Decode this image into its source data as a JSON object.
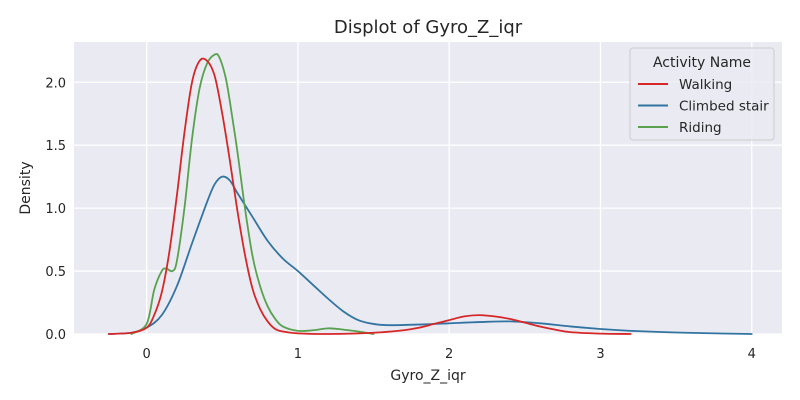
{
  "chart_data": {
    "type": "line",
    "title": "Displot of Gyro_Z_iqr",
    "xlabel": "Gyro_Z_iqr",
    "ylabel": "Density",
    "xlim": [
      -0.48,
      4.2
    ],
    "ylim": [
      0,
      2.32
    ],
    "xticks": [
      0,
      1,
      2,
      3,
      4
    ],
    "xtick_labels": [
      "0",
      "1",
      "2",
      "3",
      "4"
    ],
    "yticks": [
      0.0,
      0.5,
      1.0,
      1.5,
      2.0
    ],
    "ytick_labels": [
      "0.0",
      "0.5",
      "1.0",
      "1.5",
      "2.0"
    ],
    "grid": true,
    "background": "#eaeaf2",
    "legend": {
      "title": "Activity Name",
      "position": "top-right"
    },
    "series": [
      {
        "name": "Walking",
        "color": "#d62728",
        "x": [
          -0.25,
          -0.1,
          0.0,
          0.05,
          0.1,
          0.15,
          0.2,
          0.25,
          0.3,
          0.35,
          0.4,
          0.45,
          0.5,
          0.55,
          0.6,
          0.65,
          0.7,
          0.75,
          0.8,
          0.85,
          0.9,
          1.0,
          1.2,
          1.5,
          1.7,
          1.8,
          1.9,
          2.0,
          2.1,
          2.2,
          2.3,
          2.4,
          2.5,
          2.6,
          2.7,
          2.8,
          3.0,
          3.2
        ],
        "y": [
          0.0,
          0.01,
          0.05,
          0.15,
          0.33,
          0.65,
          1.1,
          1.6,
          2.0,
          2.17,
          2.17,
          2.05,
          1.75,
          1.38,
          0.98,
          0.63,
          0.36,
          0.2,
          0.1,
          0.04,
          0.02,
          0.005,
          0.0,
          0.01,
          0.03,
          0.05,
          0.08,
          0.11,
          0.14,
          0.15,
          0.14,
          0.12,
          0.09,
          0.06,
          0.035,
          0.015,
          0.003,
          0.0
        ]
      },
      {
        "name": "Climbed stair",
        "color": "#3274a1",
        "x": [
          -0.25,
          -0.1,
          0.0,
          0.1,
          0.2,
          0.3,
          0.4,
          0.45,
          0.5,
          0.55,
          0.6,
          0.7,
          0.8,
          0.9,
          1.0,
          1.1,
          1.2,
          1.3,
          1.4,
          1.5,
          1.6,
          1.8,
          2.0,
          2.2,
          2.4,
          2.6,
          2.8,
          3.0,
          3.2,
          3.5,
          3.8,
          4.0
        ],
        "y": [
          0.0,
          0.01,
          0.05,
          0.15,
          0.38,
          0.72,
          1.05,
          1.19,
          1.25,
          1.22,
          1.12,
          0.93,
          0.74,
          0.6,
          0.5,
          0.39,
          0.28,
          0.18,
          0.11,
          0.08,
          0.07,
          0.075,
          0.085,
          0.095,
          0.1,
          0.085,
          0.06,
          0.04,
          0.025,
          0.012,
          0.004,
          0.0
        ]
      },
      {
        "name": "Riding",
        "color": "#59a14f",
        "x": [
          -0.1,
          0.0,
          0.05,
          0.1,
          0.13,
          0.17,
          0.2,
          0.25,
          0.3,
          0.35,
          0.4,
          0.45,
          0.48,
          0.52,
          0.55,
          0.6,
          0.65,
          0.7,
          0.75,
          0.8,
          0.85,
          0.9,
          1.0,
          1.1,
          1.2,
          1.3,
          1.4,
          1.5
        ],
        "y": [
          0.0,
          0.08,
          0.35,
          0.5,
          0.52,
          0.5,
          0.58,
          1.0,
          1.55,
          1.95,
          2.15,
          2.22,
          2.2,
          2.05,
          1.85,
          1.45,
          1.0,
          0.62,
          0.38,
          0.22,
          0.12,
          0.06,
          0.025,
          0.03,
          0.045,
          0.035,
          0.02,
          0.0
        ]
      }
    ]
  }
}
